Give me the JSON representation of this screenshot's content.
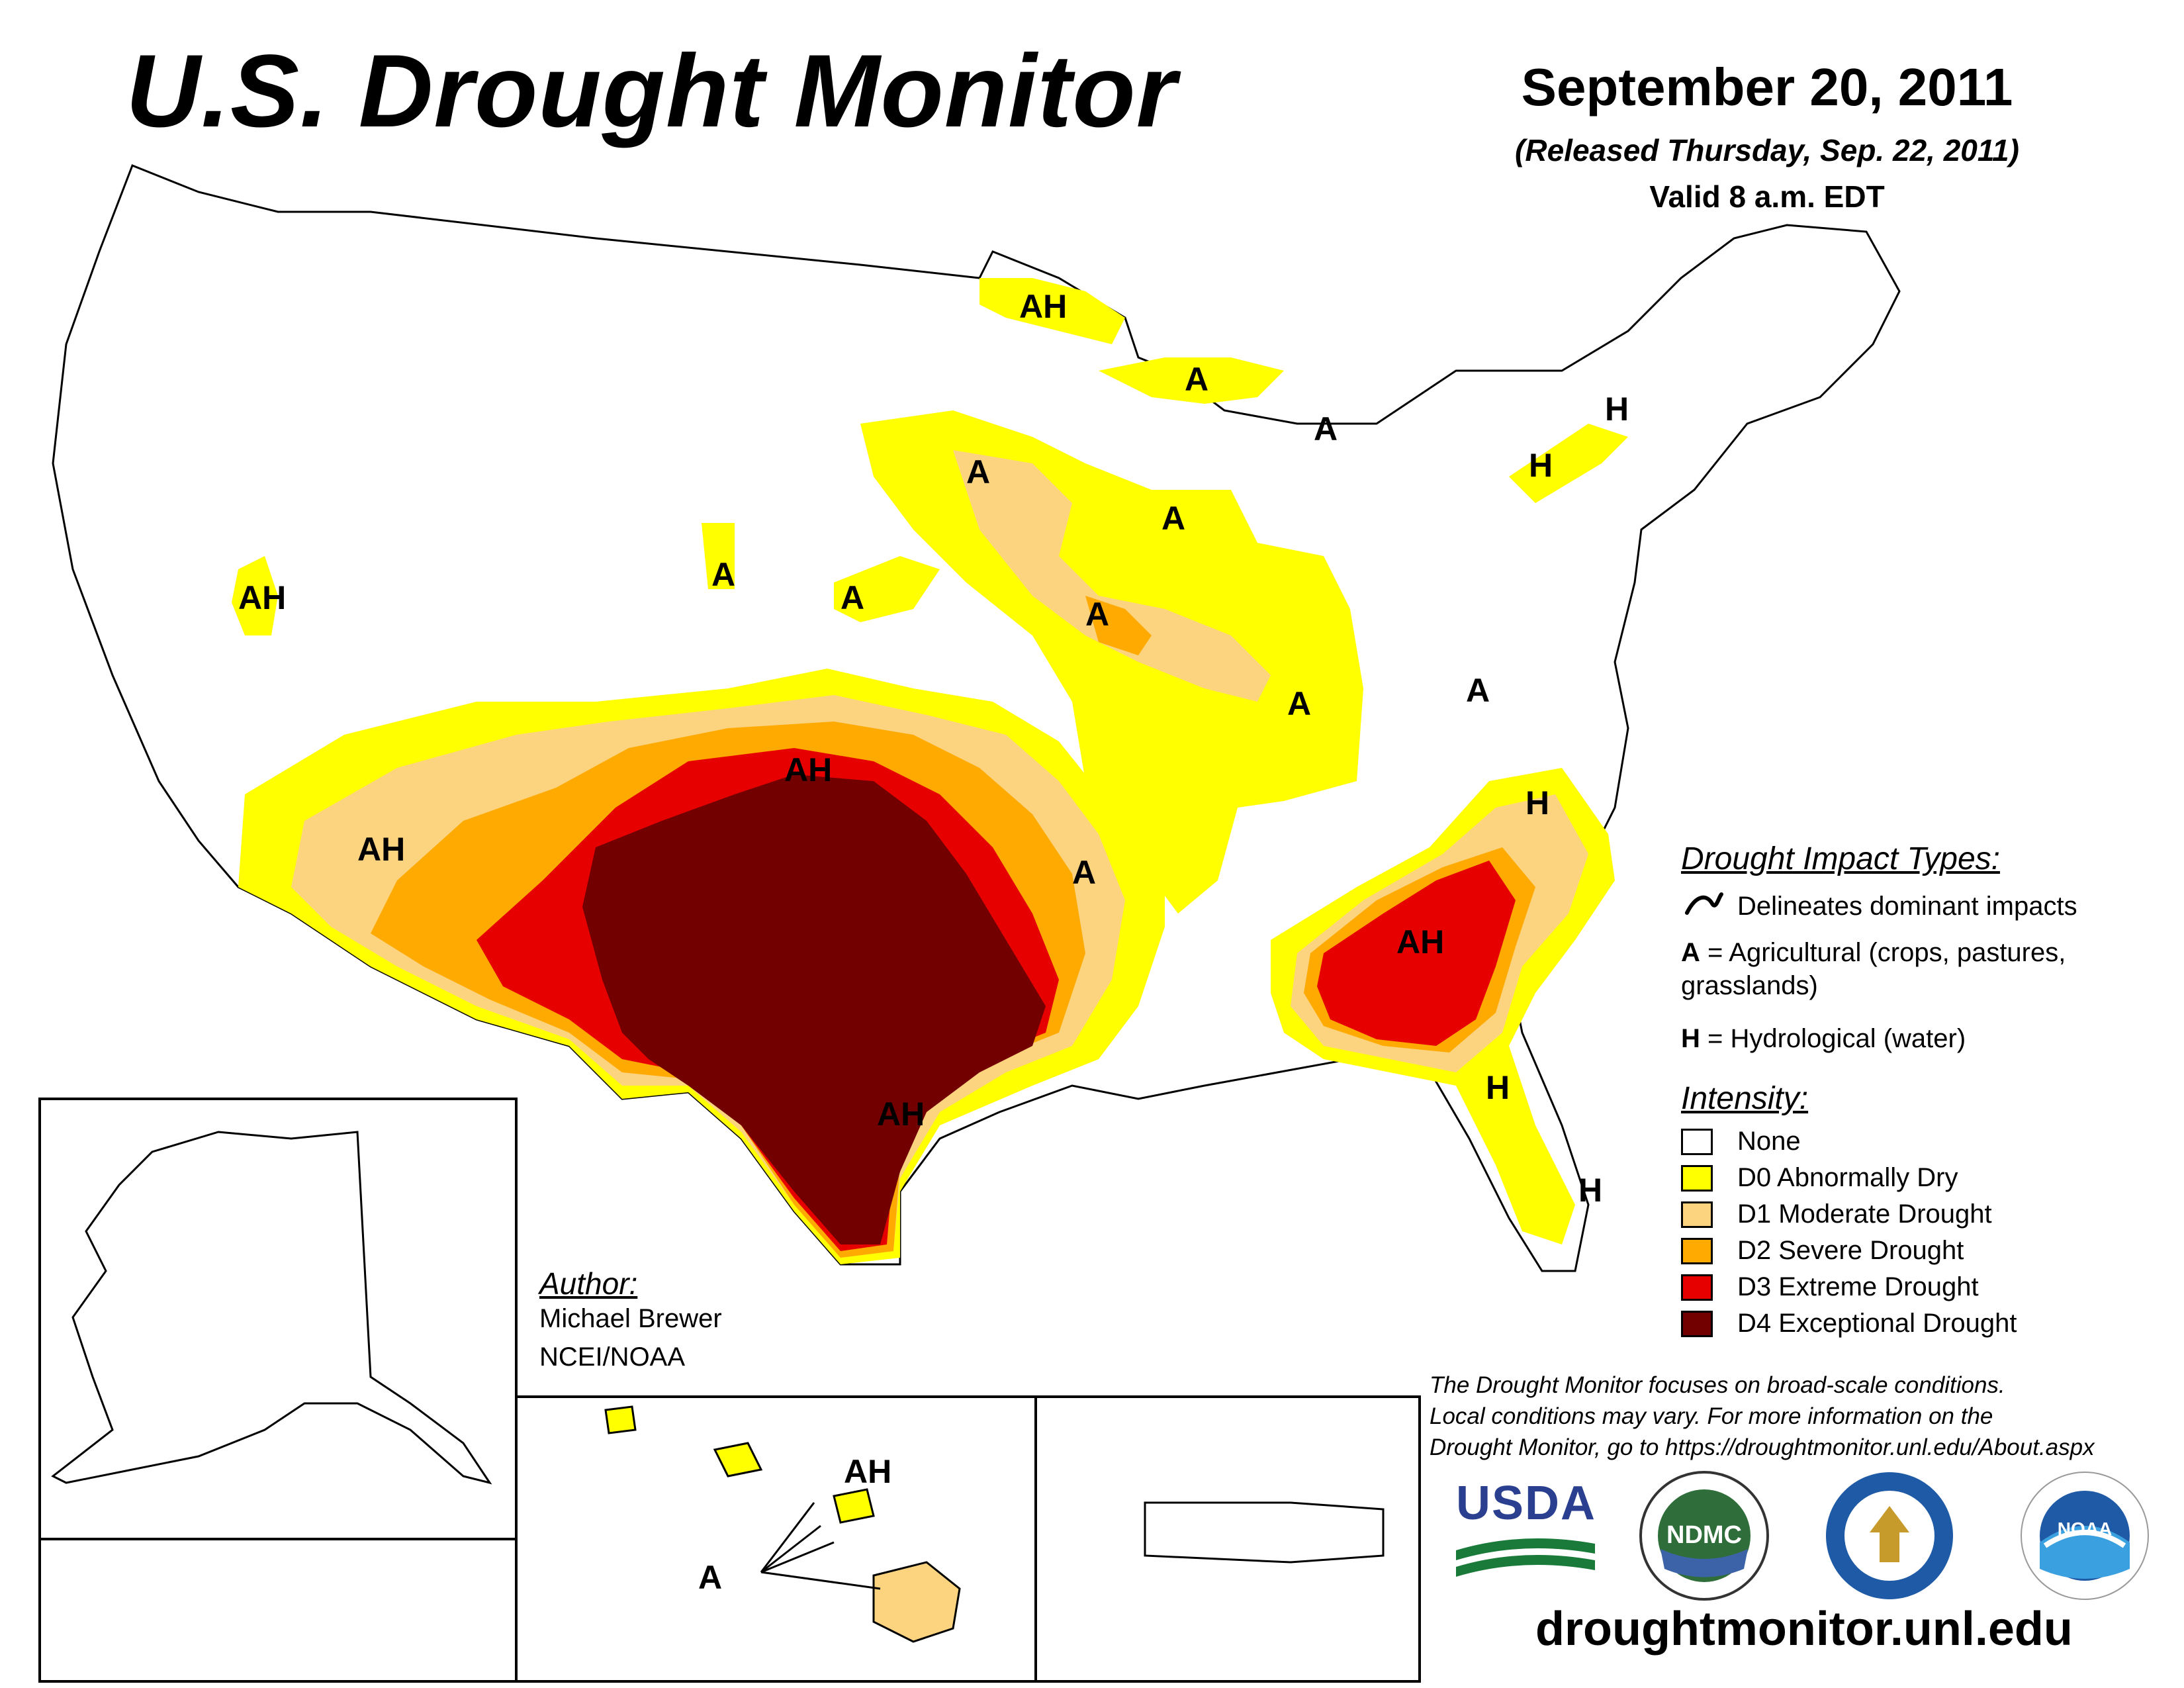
{
  "header": {
    "title": "U.S. Drought Monitor",
    "date": "September 20, 2011",
    "released": "(Released Thursday, Sep. 22, 2011)",
    "valid": "Valid 8 a.m. EDT"
  },
  "map_labels": {
    "ah_nevada": "AH",
    "ah_arizona": "AH",
    "ah_texas_panhandle": "AH",
    "ah_texas": "AH",
    "ah_georgia": "AH",
    "ah_minnesota": "AH",
    "ah_hawaii": "AH",
    "a_wisconsin": "A",
    "a_michigan_lp": "A",
    "a_michigan_up": "A",
    "a_iowa_minnesota": "A",
    "a_illinois": "A",
    "a_indiana": "A",
    "a_nebraska_w": "A",
    "a_nebraska_e": "A",
    "a_west_virginia": "A",
    "a_arkansas": "A",
    "a_hawaii": "A",
    "h_new_york_w": "H",
    "h_new_york_e": "H",
    "h_carolinas": "H",
    "h_florida_n": "H",
    "h_florida_s": "H"
  },
  "legend": {
    "impact_heading": "Drought Impact Types:",
    "delineates": "Delineates dominant impacts",
    "ag_key": "A",
    "ag_text": " = Agricultural (crops, pastures,",
    "ag_text2": "grasslands)",
    "hydro_key": "H",
    "hydro_text": " = Hydrological (water)",
    "intensity_heading": "Intensity:",
    "categories": [
      {
        "label": "None",
        "color": "#ffffff"
      },
      {
        "label": "D0 Abnormally Dry",
        "color": "#ffff00"
      },
      {
        "label": "D1 Moderate Drought",
        "color": "#fcd37f"
      },
      {
        "label": "D2 Severe Drought",
        "color": "#ffaa00"
      },
      {
        "label": "D3 Extreme Drought",
        "color": "#e60000"
      },
      {
        "label": "D4 Exceptional Drought",
        "color": "#730000"
      }
    ]
  },
  "author": {
    "heading": "Author:",
    "name": "Michael Brewer",
    "org": "NCEI/NOAA"
  },
  "disclaimer": {
    "line1": "The Drought Monitor focuses on broad-scale conditions.",
    "line2": "Local conditions may vary. For more information on the",
    "line3": "Drought Monitor, go to https://droughtmonitor.unl.edu/About.aspx"
  },
  "logos": {
    "usda": "USDA",
    "ndmc": "NDMC",
    "noaa": "NOAA"
  },
  "footer_url": "droughtmonitor.unl.edu"
}
